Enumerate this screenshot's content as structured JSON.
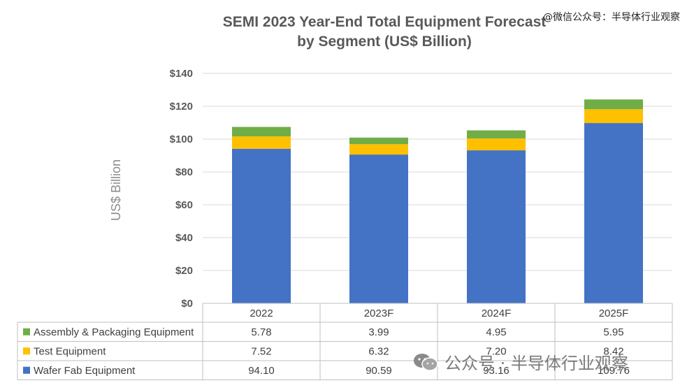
{
  "chart_data": {
    "type": "bar",
    "stacked": true,
    "title_line1": "SEMI 2023 Year-End Total Equipment Forecast",
    "title_line2": "by Segment (US$ Billion)",
    "ylabel": "US$ Billion",
    "xlabel": "",
    "ylim": [
      0,
      140
    ],
    "yticks": [
      0,
      20,
      40,
      60,
      80,
      100,
      120,
      140
    ],
    "ytick_labels": [
      "$0",
      "$20",
      "$40",
      "$60",
      "$80",
      "$100",
      "$120",
      "$140"
    ],
    "grid": true,
    "categories": [
      "2022",
      "2023F",
      "2024F",
      "2025F"
    ],
    "series": [
      {
        "name": "Wafer Fab Equipment",
        "color": "#4472C4",
        "values": [
          94.1,
          90.59,
          93.16,
          109.76
        ],
        "labels": [
          "94.10",
          "90.59",
          "93.16",
          "109.76"
        ]
      },
      {
        "name": "Test Equipment",
        "color": "#FFC000",
        "values": [
          7.52,
          6.32,
          7.2,
          8.42
        ],
        "labels": [
          "7.52",
          "6.32",
          "7.20",
          "8.42"
        ]
      },
      {
        "name": "Assembly & Packaging Equipment",
        "color": "#70AD47",
        "values": [
          5.78,
          3.99,
          4.95,
          5.95
        ],
        "labels": [
          "5.78",
          "3.99",
          "4.95",
          "5.95"
        ]
      }
    ],
    "table_row_order": [
      "Assembly & Packaging Equipment",
      "Test Equipment",
      "Wafer Fab Equipment"
    ]
  },
  "watermark_top": "@微信公众号：半导体行业观察",
  "watermark_bottom": "公众号 · 半导体行业观察",
  "watermark_icon": "wechat-icon"
}
